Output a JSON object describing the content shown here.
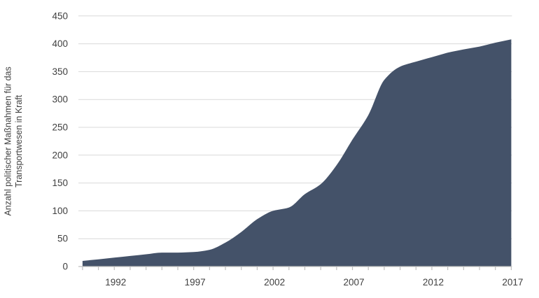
{
  "chart_data": {
    "type": "area",
    "title": "",
    "ylabel_lines": [
      "Anzahl politischer Maßnahmen für das",
      "Transportwesen in Kraft"
    ],
    "xlabel": "",
    "x": [
      1990,
      1991,
      1992,
      1993,
      1994,
      1995,
      1996,
      1997,
      1998,
      1999,
      2000,
      2001,
      2002,
      2003,
      2004,
      2005,
      2006,
      2007,
      2008,
      2009,
      2010,
      2011,
      2012,
      2013,
      2014,
      2015,
      2016,
      2017
    ],
    "values": [
      10,
      13,
      16,
      19,
      22,
      25,
      25,
      26,
      30,
      43,
      62,
      85,
      100,
      106,
      130,
      148,
      182,
      228,
      272,
      335,
      359,
      368,
      376,
      384,
      390,
      395,
      402,
      408
    ],
    "x_tick_labels": [
      "1992",
      "1997",
      "2002",
      "2007",
      "2012",
      "2017"
    ],
    "x_tick_years": [
      1992,
      1997,
      2002,
      2007,
      2012,
      2017
    ],
    "y_ticks": [
      0,
      50,
      100,
      150,
      200,
      250,
      300,
      350,
      400,
      450
    ],
    "xlim": [
      1990,
      2017
    ],
    "ylim": [
      0,
      450
    ],
    "grid": "horizontal",
    "legend": "none",
    "colors": {
      "area_fill": "#445269",
      "gridline": "#d9d9d9",
      "axis_line": "#bfbfbf",
      "label_text": "#404040"
    }
  }
}
